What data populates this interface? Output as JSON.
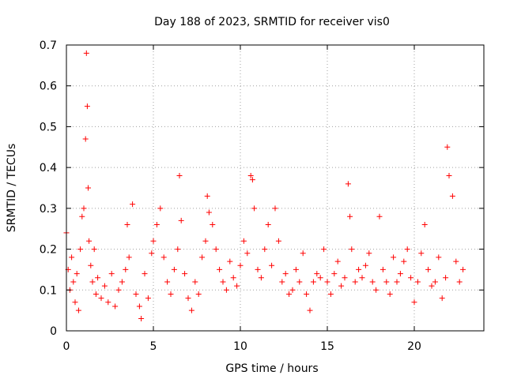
{
  "chart_data": {
    "type": "scatter",
    "title": "Day 188 of 2023, SRMTID for receiver vis0",
    "xlabel": "GPS time / hours",
    "ylabel": "SRMTID / TECUs",
    "xlim": [
      0,
      24
    ],
    "ylim": [
      0,
      0.7
    ],
    "xticks": [
      0,
      5,
      10,
      15,
      20
    ],
    "xtick_labels": [
      "0",
      "5",
      "10",
      "15",
      "20"
    ],
    "yticks": [
      0,
      0.1,
      0.2,
      0.3,
      0.4,
      0.5,
      0.6,
      0.7
    ],
    "ytick_labels": [
      "0",
      "0.1",
      "0.2",
      "0.3",
      "0.4",
      "0.5",
      "0.6",
      "0.7"
    ],
    "grid": true,
    "marker": "+",
    "color": "#ff0000",
    "series": [
      {
        "name": "vis0",
        "x": [
          0.0,
          0.1,
          0.2,
          0.3,
          0.4,
          0.5,
          0.6,
          0.7,
          0.8,
          0.9,
          1.0,
          1.1,
          1.15,
          1.2,
          1.25,
          1.3,
          1.4,
          1.5,
          1.6,
          1.7,
          1.8,
          2.0,
          2.2,
          2.4,
          2.6,
          2.8,
          3.0,
          3.2,
          3.4,
          3.5,
          3.6,
          3.8,
          4.0,
          4.2,
          4.3,
          4.5,
          4.7,
          4.9,
          5.0,
          5.2,
          5.4,
          5.6,
          5.8,
          6.0,
          6.2,
          6.4,
          6.5,
          6.6,
          6.8,
          7.0,
          7.2,
          7.4,
          7.6,
          7.8,
          8.0,
          8.1,
          8.2,
          8.4,
          8.6,
          8.8,
          9.0,
          9.2,
          9.4,
          9.6,
          9.8,
          10.0,
          10.2,
          10.4,
          10.6,
          10.7,
          10.8,
          11.0,
          11.2,
          11.4,
          11.6,
          11.8,
          12.0,
          12.2,
          12.4,
          12.6,
          12.8,
          13.0,
          13.2,
          13.4,
          13.6,
          13.8,
          14.0,
          14.2,
          14.4,
          14.6,
          14.8,
          15.0,
          15.2,
          15.4,
          15.6,
          15.8,
          16.0,
          16.2,
          16.3,
          16.4,
          16.6,
          16.8,
          17.0,
          17.2,
          17.4,
          17.6,
          17.8,
          18.0,
          18.2,
          18.4,
          18.6,
          18.8,
          19.0,
          19.2,
          19.4,
          19.6,
          19.8,
          20.0,
          20.2,
          20.4,
          20.6,
          20.8,
          21.0,
          21.2,
          21.4,
          21.6,
          21.8,
          21.9,
          22.0,
          22.2,
          22.4,
          22.6,
          22.8
        ],
        "y": [
          0.24,
          0.15,
          0.1,
          0.18,
          0.12,
          0.07,
          0.14,
          0.05,
          0.2,
          0.28,
          0.3,
          0.47,
          0.68,
          0.55,
          0.35,
          0.22,
          0.16,
          0.12,
          0.2,
          0.09,
          0.13,
          0.08,
          0.11,
          0.07,
          0.14,
          0.06,
          0.1,
          0.12,
          0.15,
          0.26,
          0.18,
          0.31,
          0.09,
          0.06,
          0.03,
          0.14,
          0.08,
          0.19,
          0.22,
          0.26,
          0.3,
          0.18,
          0.12,
          0.09,
          0.15,
          0.2,
          0.38,
          0.27,
          0.14,
          0.08,
          0.05,
          0.12,
          0.09,
          0.18,
          0.22,
          0.33,
          0.29,
          0.26,
          0.2,
          0.15,
          0.12,
          0.1,
          0.17,
          0.13,
          0.11,
          0.16,
          0.22,
          0.19,
          0.38,
          0.37,
          0.3,
          0.15,
          0.13,
          0.2,
          0.26,
          0.16,
          0.3,
          0.22,
          0.12,
          0.14,
          0.09,
          0.1,
          0.15,
          0.12,
          0.19,
          0.09,
          0.05,
          0.12,
          0.14,
          0.13,
          0.2,
          0.12,
          0.09,
          0.14,
          0.17,
          0.11,
          0.13,
          0.36,
          0.28,
          0.2,
          0.12,
          0.15,
          0.13,
          0.16,
          0.19,
          0.12,
          0.1,
          0.28,
          0.15,
          0.12,
          0.09,
          0.18,
          0.12,
          0.14,
          0.17,
          0.2,
          0.13,
          0.07,
          0.12,
          0.19,
          0.26,
          0.15,
          0.11,
          0.12,
          0.18,
          0.08,
          0.13,
          0.45,
          0.38,
          0.33,
          0.17,
          0.12,
          0.15
        ]
      }
    ]
  }
}
